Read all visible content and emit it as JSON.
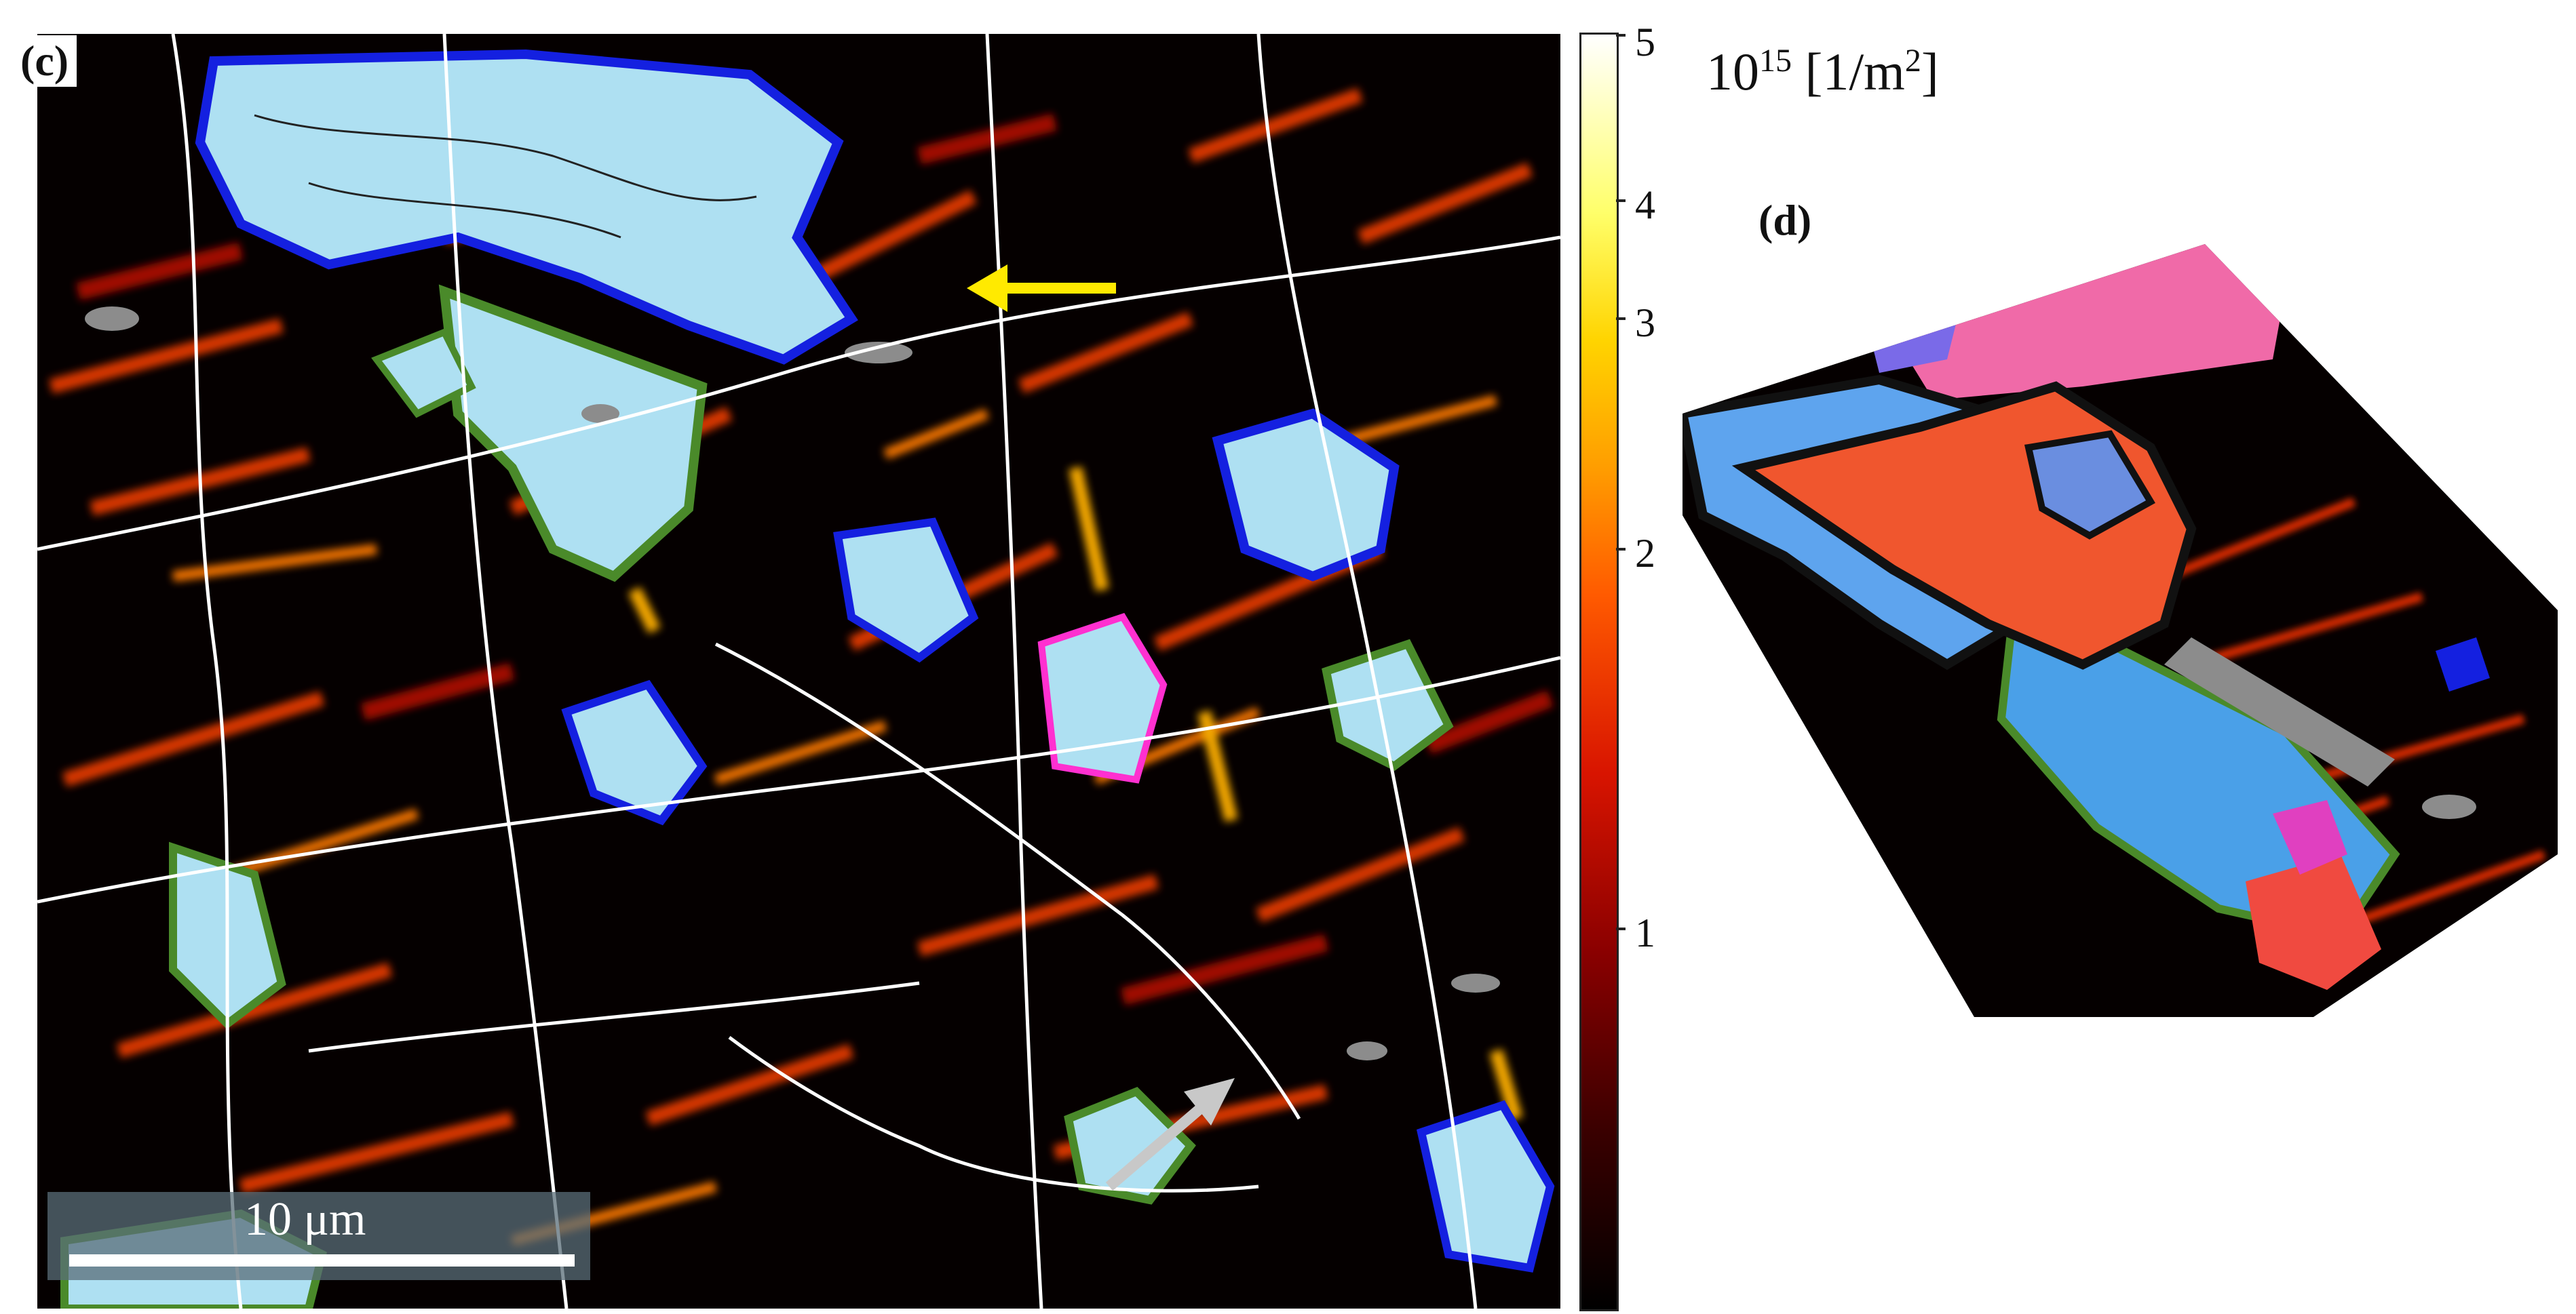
{
  "panel_c": {
    "label": "(c)",
    "scale_bar": "10 μm",
    "arrows": [
      "yellow-arrow",
      "gray-arrow"
    ]
  },
  "colorbar": {
    "ticks": [
      "5",
      "4",
      "3",
      "2",
      "1"
    ],
    "unit": {
      "base": "10",
      "exponent": "15",
      "bracket": "[1/m",
      "bracket_exp": "2",
      "bracket_close": "]"
    },
    "colors": {
      "low": "#000000",
      "mid": "#ff5a00",
      "high": "#ffffff"
    }
  },
  "panel_d": {
    "label": "(d)"
  },
  "colors": {
    "background_map": "#050000",
    "dislocation": "#e23a00",
    "grain_boundary": "#ffffff",
    "phase_light_blue": "#aee0f2",
    "edge_blue": "#1420e0",
    "edge_green": "#4a8a2a",
    "edge_magenta": "#ff30d0",
    "gray_region": "#8c8c8c"
  }
}
